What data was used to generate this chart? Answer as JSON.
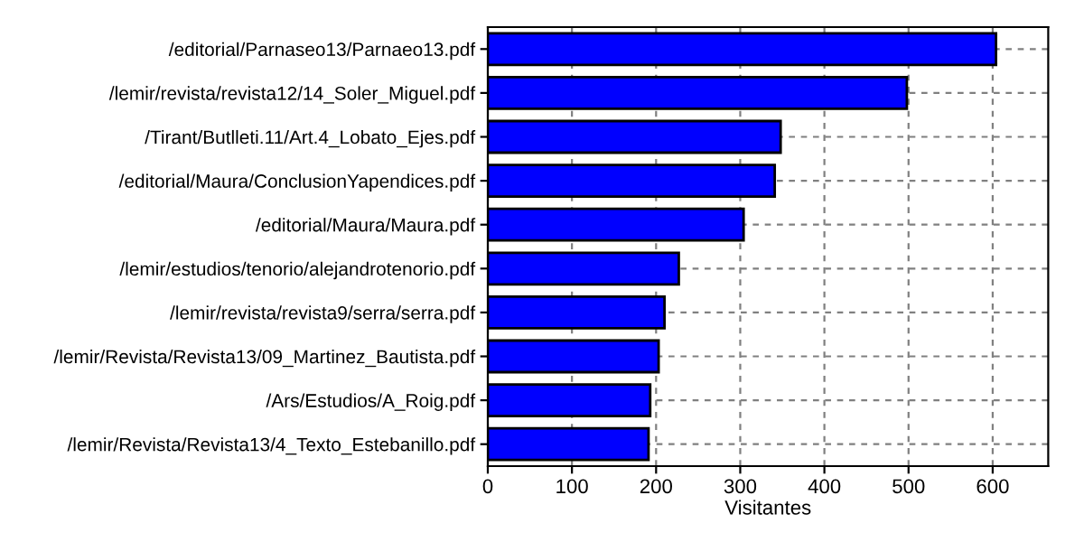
{
  "chart_data": {
    "type": "bar",
    "orientation": "horizontal",
    "xlabel": "Visitantes",
    "categories": [
      "/editorial/Parnaseo13/Parnaeo13.pdf",
      "/lemir/revista/revista12/14_Soler_Miguel.pdf",
      "/Tirant/Butlleti.11/Art.4_Lobato_Ejes.pdf",
      "/editorial/Maura/ConclusionYapendices.pdf",
      "/editorial/Maura/Maura.pdf",
      "/lemir/estudios/tenorio/alejandrotenorio.pdf",
      "/lemir/revista/revista9/serra/serra.pdf",
      "/lemir/Revista/Revista13/09_Martinez_Bautista.pdf",
      "/Ars/Estudios/A_Roig.pdf",
      "/lemir/Revista/Revista13/4_Texto_Estebanillo.pdf"
    ],
    "values": [
      604,
      498,
      348,
      341,
      304,
      227,
      210,
      203,
      193,
      191
    ],
    "color": "#0000ff",
    "xlim": [
      0,
      666
    ],
    "xticks": [
      0,
      100,
      200,
      300,
      400,
      500,
      600
    ],
    "grid": true
  }
}
